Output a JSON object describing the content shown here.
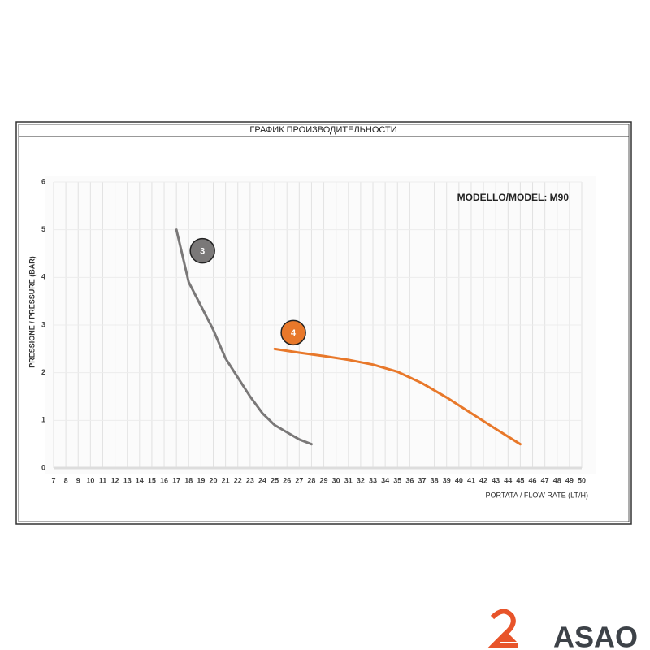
{
  "header": "ГРАФИК ПРОИЗВОДИТЕЛЬНОСТИ",
  "chart_data": {
    "type": "line",
    "annotation": "MODELLO/MODEL: M90",
    "x_label": "PORTATA / FLOW RATE (LT/H)",
    "y_label": "PRESSIONE / PRESSURE (BAR)",
    "xlim": [
      7,
      50
    ],
    "ylim": [
      0,
      6
    ],
    "xticks": [
      7,
      8,
      9,
      10,
      11,
      12,
      13,
      14,
      15,
      16,
      17,
      18,
      19,
      20,
      21,
      22,
      23,
      24,
      25,
      26,
      27,
      28,
      29,
      30,
      31,
      32,
      33,
      34,
      35,
      36,
      37,
      38,
      39,
      40,
      41,
      42,
      43,
      44,
      45,
      46,
      47,
      48,
      49,
      50
    ],
    "yticks": [
      0,
      1,
      2,
      3,
      4,
      5,
      6
    ],
    "grid": true,
    "series": [
      {
        "name": "3",
        "color": "#7a7878",
        "x": [
          17,
          18,
          19,
          20,
          21,
          22,
          23,
          24,
          25,
          26,
          27,
          28
        ],
        "values": [
          5,
          3.9,
          3.4,
          2.9,
          2.3,
          1.9,
          1.5,
          1.15,
          0.9,
          0.75,
          0.6,
          0.5
        ]
      },
      {
        "name": "4",
        "color": "#e8782a",
        "x": [
          25,
          27,
          29,
          31,
          33,
          35,
          37,
          39,
          41,
          43,
          45
        ],
        "values": [
          2.5,
          2.42,
          2.35,
          2.27,
          2.17,
          2.02,
          1.78,
          1.48,
          1.15,
          0.82,
          0.5
        ]
      }
    ]
  },
  "logo": "ASAO"
}
